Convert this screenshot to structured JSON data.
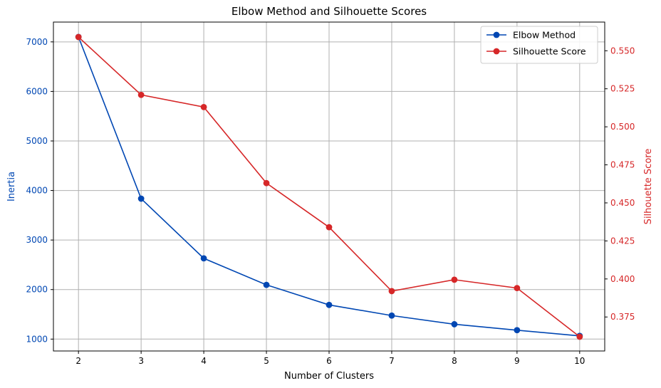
{
  "chart_data": {
    "type": "line",
    "title": "Elbow Method and Silhouette Scores",
    "xlabel": "Number of Clusters",
    "x": [
      2,
      3,
      4,
      5,
      6,
      7,
      8,
      9,
      10
    ],
    "xlim": [
      1.6,
      10.4
    ],
    "grid": true,
    "legend_position": "top-right",
    "series": [
      {
        "name": "Elbow Method",
        "axis": "left",
        "color": "#0047b3",
        "marker": "circle",
        "values": [
          7100,
          3835,
          2630,
          2095,
          1690,
          1475,
          1300,
          1180,
          1065
        ]
      },
      {
        "name": "Silhouette Score",
        "axis": "right",
        "color": "#d62728",
        "marker": "circle",
        "values": [
          0.559,
          0.521,
          0.513,
          0.463,
          0.434,
          0.392,
          0.3995,
          0.394,
          0.362
        ]
      }
    ],
    "left_axis": {
      "label": "Inertia",
      "color": "#0047b3",
      "ylim": [
        760,
        7400
      ],
      "ticks": [
        1000,
        2000,
        3000,
        4000,
        5000,
        6000,
        7000
      ]
    },
    "right_axis": {
      "label": "Silhouette Score",
      "color": "#d62728",
      "ylim": [
        0.35265,
        0.56885
      ],
      "ticks": [
        0.375,
        0.4,
        0.425,
        0.45,
        0.475,
        0.5,
        0.525,
        0.55
      ],
      "tick_labels": [
        "0.375",
        "0.400",
        "0.425",
        "0.450",
        "0.475",
        "0.500",
        "0.525",
        "0.550"
      ]
    }
  }
}
